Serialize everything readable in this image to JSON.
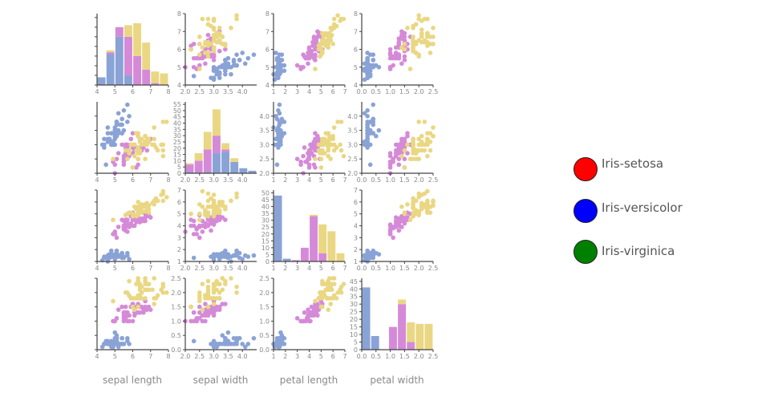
{
  "chart_data": {
    "type": "scatter",
    "variables": [
      "sepal length",
      "sepal width",
      "petal length",
      "petal width"
    ],
    "ranges": [
      [
        4,
        8
      ],
      [
        2,
        4.5
      ],
      [
        1,
        7
      ],
      [
        0,
        2.5
      ]
    ],
    "ticks": [
      [
        "4",
        "5",
        "6",
        "7",
        "8"
      ],
      [
        "2.0",
        "2.5",
        "3.0",
        "3.5",
        "4.0"
      ],
      [
        "1",
        "2",
        "3",
        "4",
        "5",
        "6",
        "7"
      ],
      [
        "0.0",
        "0.5",
        "1.0",
        "1.5",
        "2.0",
        "2.5"
      ]
    ],
    "legend": [
      {
        "name": "Iris-setosa",
        "color": "#ff0000"
      },
      {
        "name": "Iris-versicolor",
        "color": "#0000ff"
      },
      {
        "name": "Iris-virginica",
        "color": "#008000"
      }
    ],
    "point_colors": {
      "Iris-setosa": "#8aa3d6",
      "Iris-versicolor": "#d58ad8",
      "Iris-virginica": "#ead783"
    },
    "series": [
      {
        "name": "Iris-setosa",
        "rows": [
          [
            5.1,
            3.5,
            1.4,
            0.2
          ],
          [
            4.9,
            3.0,
            1.4,
            0.2
          ],
          [
            4.7,
            3.2,
            1.3,
            0.2
          ],
          [
            4.6,
            3.1,
            1.5,
            0.2
          ],
          [
            5.0,
            3.6,
            1.4,
            0.2
          ],
          [
            5.4,
            3.9,
            1.7,
            0.4
          ],
          [
            4.6,
            3.4,
            1.4,
            0.3
          ],
          [
            5.0,
            3.4,
            1.5,
            0.2
          ],
          [
            4.4,
            2.9,
            1.4,
            0.2
          ],
          [
            4.9,
            3.1,
            1.5,
            0.1
          ],
          [
            5.4,
            3.7,
            1.5,
            0.2
          ],
          [
            4.8,
            3.4,
            1.6,
            0.2
          ],
          [
            4.8,
            3.0,
            1.4,
            0.1
          ],
          [
            4.3,
            3.0,
            1.1,
            0.1
          ],
          [
            5.8,
            4.0,
            1.2,
            0.2
          ],
          [
            5.7,
            4.4,
            1.5,
            0.4
          ],
          [
            5.4,
            3.9,
            1.3,
            0.4
          ],
          [
            5.1,
            3.5,
            1.4,
            0.3
          ],
          [
            5.7,
            3.8,
            1.7,
            0.3
          ],
          [
            5.1,
            3.8,
            1.5,
            0.3
          ],
          [
            5.4,
            3.4,
            1.7,
            0.2
          ],
          [
            5.1,
            3.7,
            1.5,
            0.4
          ],
          [
            4.6,
            3.6,
            1.0,
            0.2
          ],
          [
            5.1,
            3.3,
            1.7,
            0.5
          ],
          [
            4.8,
            3.4,
            1.9,
            0.2
          ],
          [
            5.0,
            3.0,
            1.6,
            0.2
          ],
          [
            5.0,
            3.4,
            1.6,
            0.4
          ],
          [
            5.2,
            3.5,
            1.5,
            0.2
          ],
          [
            5.2,
            3.4,
            1.4,
            0.2
          ],
          [
            4.7,
            3.2,
            1.6,
            0.2
          ],
          [
            4.8,
            3.1,
            1.6,
            0.2
          ],
          [
            5.4,
            3.4,
            1.5,
            0.4
          ],
          [
            5.2,
            4.1,
            1.5,
            0.1
          ],
          [
            5.5,
            4.2,
            1.4,
            0.2
          ],
          [
            4.9,
            3.1,
            1.5,
            0.1
          ],
          [
            5.0,
            3.2,
            1.2,
            0.2
          ],
          [
            5.5,
            3.5,
            1.3,
            0.2
          ],
          [
            4.9,
            3.1,
            1.5,
            0.1
          ],
          [
            4.4,
            3.0,
            1.3,
            0.2
          ],
          [
            5.1,
            3.4,
            1.5,
            0.2
          ],
          [
            5.0,
            3.5,
            1.3,
            0.3
          ],
          [
            4.5,
            2.3,
            1.3,
            0.3
          ],
          [
            4.4,
            3.2,
            1.3,
            0.2
          ],
          [
            5.0,
            3.5,
            1.6,
            0.6
          ],
          [
            5.1,
            3.8,
            1.9,
            0.4
          ],
          [
            4.8,
            3.0,
            1.4,
            0.3
          ],
          [
            5.1,
            3.8,
            1.6,
            0.2
          ],
          [
            4.6,
            3.2,
            1.4,
            0.2
          ],
          [
            5.3,
            3.7,
            1.5,
            0.2
          ],
          [
            5.0,
            3.3,
            1.4,
            0.2
          ]
        ]
      },
      {
        "name": "Iris-versicolor",
        "rows": [
          [
            7.0,
            3.2,
            4.7,
            1.4
          ],
          [
            6.4,
            3.2,
            4.5,
            1.5
          ],
          [
            6.9,
            3.1,
            4.9,
            1.5
          ],
          [
            5.5,
            2.3,
            4.0,
            1.3
          ],
          [
            6.5,
            2.8,
            4.6,
            1.5
          ],
          [
            5.7,
            2.8,
            4.5,
            1.3
          ],
          [
            6.3,
            3.3,
            4.7,
            1.6
          ],
          [
            4.9,
            2.4,
            3.3,
            1.0
          ],
          [
            6.6,
            2.9,
            4.6,
            1.3
          ],
          [
            5.2,
            2.7,
            3.9,
            1.4
          ],
          [
            5.0,
            2.0,
            3.5,
            1.0
          ],
          [
            5.9,
            3.0,
            4.2,
            1.5
          ],
          [
            6.0,
            2.2,
            4.0,
            1.0
          ],
          [
            6.1,
            2.9,
            4.7,
            1.4
          ],
          [
            5.6,
            2.9,
            3.6,
            1.3
          ],
          [
            6.7,
            3.1,
            4.4,
            1.4
          ],
          [
            5.6,
            3.0,
            4.5,
            1.5
          ],
          [
            5.8,
            2.7,
            4.1,
            1.0
          ],
          [
            6.2,
            2.2,
            4.5,
            1.5
          ],
          [
            5.6,
            2.5,
            3.9,
            1.1
          ],
          [
            5.9,
            3.2,
            4.8,
            1.8
          ],
          [
            6.1,
            2.8,
            4.0,
            1.3
          ],
          [
            6.3,
            2.5,
            4.9,
            1.5
          ],
          [
            6.1,
            2.8,
            4.7,
            1.2
          ],
          [
            6.4,
            2.9,
            4.3,
            1.3
          ],
          [
            6.6,
            3.0,
            4.4,
            1.4
          ],
          [
            6.8,
            2.8,
            4.8,
            1.4
          ],
          [
            6.7,
            3.0,
            5.0,
            1.7
          ],
          [
            6.0,
            2.9,
            4.5,
            1.5
          ],
          [
            5.7,
            2.6,
            3.5,
            1.0
          ],
          [
            5.5,
            2.4,
            3.8,
            1.1
          ],
          [
            5.5,
            2.4,
            3.7,
            1.0
          ],
          [
            5.8,
            2.7,
            3.9,
            1.2
          ],
          [
            6.0,
            2.7,
            5.1,
            1.6
          ],
          [
            5.4,
            3.0,
            4.5,
            1.5
          ],
          [
            6.0,
            3.4,
            4.5,
            1.6
          ],
          [
            6.7,
            3.1,
            4.7,
            1.5
          ],
          [
            6.3,
            2.3,
            4.4,
            1.3
          ],
          [
            5.6,
            3.0,
            4.1,
            1.3
          ],
          [
            5.5,
            2.5,
            4.0,
            1.3
          ],
          [
            5.5,
            2.6,
            4.4,
            1.2
          ],
          [
            6.1,
            3.0,
            4.6,
            1.4
          ],
          [
            5.8,
            2.6,
            4.0,
            1.2
          ],
          [
            5.0,
            2.3,
            3.3,
            1.0
          ],
          [
            5.6,
            2.7,
            4.2,
            1.3
          ],
          [
            5.7,
            3.0,
            4.2,
            1.2
          ],
          [
            5.7,
            2.9,
            4.2,
            1.3
          ],
          [
            6.2,
            2.9,
            4.3,
            1.3
          ],
          [
            5.1,
            2.5,
            3.0,
            1.1
          ],
          [
            5.7,
            2.8,
            4.1,
            1.3
          ]
        ]
      },
      {
        "name": "Iris-virginica",
        "rows": [
          [
            6.3,
            3.3,
            6.0,
            2.5
          ],
          [
            5.8,
            2.7,
            5.1,
            1.9
          ],
          [
            7.1,
            3.0,
            5.9,
            2.1
          ],
          [
            6.3,
            2.9,
            5.6,
            1.8
          ],
          [
            6.5,
            3.0,
            5.8,
            2.2
          ],
          [
            7.6,
            3.0,
            6.6,
            2.1
          ],
          [
            4.9,
            2.5,
            4.5,
            1.7
          ],
          [
            7.3,
            2.9,
            6.3,
            1.8
          ],
          [
            6.7,
            2.5,
            5.8,
            1.8
          ],
          [
            7.2,
            3.6,
            6.1,
            2.5
          ],
          [
            6.5,
            3.2,
            5.1,
            2.0
          ],
          [
            6.4,
            2.7,
            5.3,
            1.9
          ],
          [
            6.8,
            3.0,
            5.5,
            2.1
          ],
          [
            5.7,
            2.5,
            5.0,
            2.0
          ],
          [
            5.8,
            2.8,
            5.1,
            2.4
          ],
          [
            6.4,
            3.2,
            5.3,
            2.3
          ],
          [
            6.5,
            3.0,
            5.5,
            1.8
          ],
          [
            7.7,
            3.8,
            6.7,
            2.2
          ],
          [
            7.7,
            2.6,
            6.9,
            2.3
          ],
          [
            6.0,
            2.2,
            5.0,
            1.5
          ],
          [
            6.9,
            3.2,
            5.7,
            2.3
          ],
          [
            5.6,
            2.8,
            4.9,
            2.0
          ],
          [
            7.7,
            2.8,
            6.7,
            2.0
          ],
          [
            6.3,
            2.7,
            4.9,
            1.8
          ],
          [
            6.7,
            3.3,
            5.7,
            2.1
          ],
          [
            7.2,
            3.2,
            6.0,
            1.8
          ],
          [
            6.2,
            2.8,
            4.8,
            1.8
          ],
          [
            6.1,
            3.0,
            4.9,
            1.8
          ],
          [
            6.4,
            2.8,
            5.6,
            2.1
          ],
          [
            7.2,
            3.0,
            5.8,
            1.6
          ],
          [
            7.4,
            2.8,
            6.1,
            1.9
          ],
          [
            7.9,
            3.8,
            6.4,
            2.0
          ],
          [
            6.4,
            2.8,
            5.6,
            2.2
          ],
          [
            6.3,
            2.8,
            5.1,
            1.5
          ],
          [
            6.1,
            2.6,
            5.6,
            1.4
          ],
          [
            7.7,
            3.0,
            6.1,
            2.3
          ],
          [
            6.3,
            3.4,
            5.6,
            2.4
          ],
          [
            6.4,
            3.1,
            5.5,
            1.8
          ],
          [
            6.0,
            3.0,
            4.8,
            1.8
          ],
          [
            6.9,
            3.1,
            5.4,
            2.1
          ],
          [
            6.7,
            3.1,
            5.6,
            2.4
          ],
          [
            6.9,
            3.1,
            5.1,
            2.3
          ],
          [
            5.8,
            2.7,
            5.1,
            1.9
          ],
          [
            6.8,
            3.2,
            5.9,
            2.3
          ],
          [
            6.7,
            3.3,
            5.7,
            2.5
          ],
          [
            6.7,
            3.0,
            5.2,
            2.3
          ],
          [
            6.3,
            2.5,
            5.0,
            1.9
          ],
          [
            6.5,
            3.0,
            5.2,
            2.0
          ],
          [
            6.2,
            3.4,
            5.4,
            2.3
          ],
          [
            5.9,
            3.0,
            5.1,
            1.8
          ]
        ]
      }
    ]
  }
}
